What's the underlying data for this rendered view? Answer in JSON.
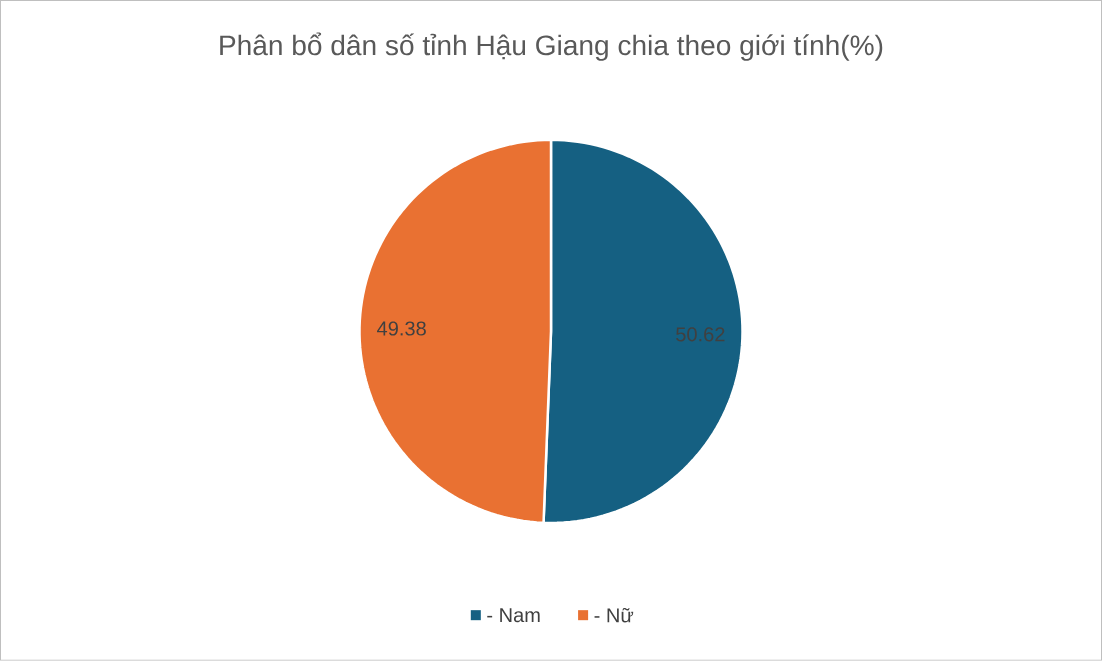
{
  "chart_data": {
    "type": "pie",
    "title": "Phân bổ dân số tỉnh Hậu Giang chia theo giới tính(%)",
    "categories": [
      "- Nam",
      "- Nữ"
    ],
    "values": [
      50.62,
      49.38
    ],
    "colors": [
      "#156082",
      "#e97132"
    ],
    "data_labels": true,
    "legend": "bottom"
  }
}
